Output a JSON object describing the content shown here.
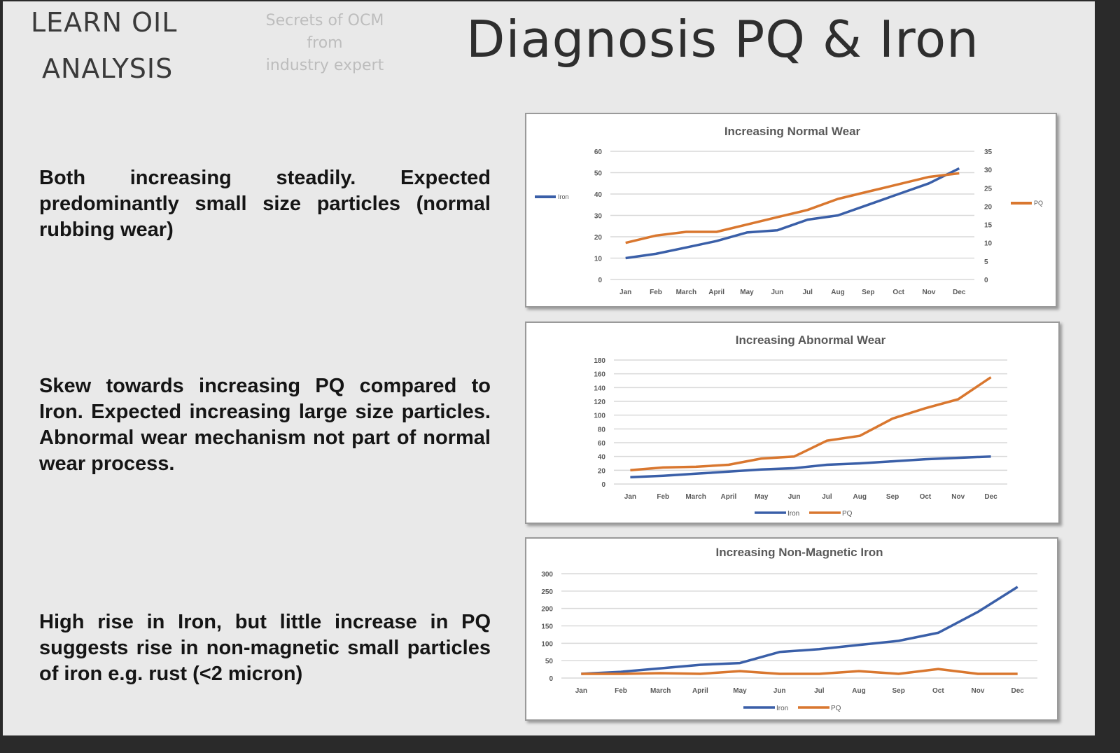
{
  "header": {
    "brand_line1": "LEARN OIL",
    "brand_line2": "ANALYSIS",
    "tagline": [
      "Secrets of OCM",
      "from",
      "industry expert"
    ],
    "title": "Diagnosis PQ & Iron"
  },
  "descriptions": [
    "Both increasing steadily. Expected predominantly small size particles (normal rubbing wear)",
    "Skew towards increasing PQ compared to Iron. Expected increasing large size particles. Abnormal wear mechanism not part of normal wear process.",
    "High rise in Iron, but little increase in PQ suggests rise in non-magnetic small particles of iron e.g. rust (<2 micron)"
  ],
  "colors": {
    "iron": "#3a5fa8",
    "pq": "#d9772f",
    "grid": "#d9d9d9",
    "text": "#595959"
  },
  "chart_data": [
    {
      "type": "line",
      "title": "Increasing Normal Wear",
      "categories": [
        "Jan",
        "Feb",
        "March",
        "April",
        "May",
        "Jun",
        "Jul",
        "Aug",
        "Sep",
        "Oct",
        "Nov",
        "Dec"
      ],
      "ylim": [
        0,
        60
      ],
      "yticks": [
        0,
        10,
        20,
        30,
        40,
        50,
        60
      ],
      "y2lim": [
        0,
        35
      ],
      "y2ticks": [
        0,
        5,
        10,
        15,
        20,
        25,
        30,
        35
      ],
      "grid": true,
      "legend": "sides",
      "series": [
        {
          "name": "Iron",
          "axis": "left",
          "color": "#3a5fa8",
          "values": [
            10,
            12,
            15,
            18,
            22,
            23,
            28,
            30,
            35,
            40,
            45,
            52
          ]
        },
        {
          "name": "PQ",
          "axis": "right",
          "color": "#d9772f",
          "values": [
            10,
            12,
            13,
            13,
            15,
            17,
            19,
            22,
            24,
            26,
            28,
            29
          ]
        }
      ]
    },
    {
      "type": "line",
      "title": "Increasing Abnormal Wear",
      "categories": [
        "Jan",
        "Feb",
        "March",
        "April",
        "May",
        "Jun",
        "Jul",
        "Aug",
        "Sep",
        "Oct",
        "Nov",
        "Dec"
      ],
      "ylim": [
        0,
        180
      ],
      "yticks": [
        0,
        20,
        40,
        60,
        80,
        100,
        120,
        140,
        160,
        180
      ],
      "grid": true,
      "legend": "bottom",
      "series": [
        {
          "name": "Iron",
          "axis": "left",
          "color": "#3a5fa8",
          "values": [
            10,
            12,
            15,
            18,
            21,
            23,
            28,
            30,
            33,
            36,
            38,
            40
          ]
        },
        {
          "name": "PQ",
          "axis": "left",
          "color": "#d9772f",
          "values": [
            20,
            24,
            25,
            28,
            37,
            40,
            63,
            70,
            95,
            110,
            123,
            155
          ]
        }
      ]
    },
    {
      "type": "line",
      "title": "Increasing Non-Magnetic Iron",
      "categories": [
        "Jan",
        "Feb",
        "March",
        "April",
        "May",
        "Jun",
        "Jul",
        "Aug",
        "Sep",
        "Oct",
        "Nov",
        "Dec"
      ],
      "ylim": [
        0,
        300
      ],
      "yticks": [
        0,
        50,
        100,
        150,
        200,
        250,
        300
      ],
      "grid": true,
      "legend": "bottom",
      "series": [
        {
          "name": "Iron",
          "axis": "left",
          "color": "#3a5fa8",
          "values": [
            12,
            18,
            28,
            38,
            43,
            75,
            83,
            95,
            107,
            130,
            190,
            262
          ]
        },
        {
          "name": "PQ",
          "axis": "left",
          "color": "#d9772f",
          "values": [
            12,
            12,
            14,
            12,
            20,
            12,
            12,
            20,
            12,
            26,
            12,
            12
          ]
        }
      ]
    }
  ]
}
